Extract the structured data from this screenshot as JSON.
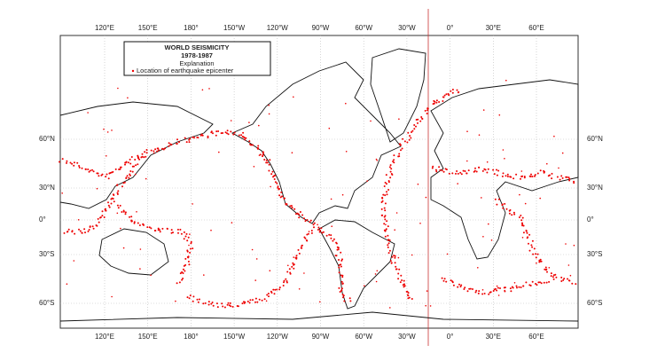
{
  "map": {
    "title": "WORLD SEISMICITY",
    "period": "1978-1987",
    "legend_heading": "Explanation",
    "legend_item": "Location of earthquake epicenter",
    "top_longitude_labels": [
      "120°E",
      "150°E",
      "180°",
      "150°W",
      "120°W",
      "90°W",
      "60°W",
      "30°W",
      "0°",
      "30°E",
      "60°E"
    ],
    "bottom_longitude_labels": [
      "120°E",
      "150°E",
      "180°",
      "150°W",
      "120°W",
      "90°W",
      "60°W",
      "30°W",
      "0°",
      "30°E",
      "60°E"
    ],
    "left_latitude_labels": [
      "60°N",
      "30°N",
      "0°",
      "30°S",
      "60°S"
    ],
    "right_latitude_labels": [
      "60°N",
      "30°N",
      "0°",
      "30°S",
      "60°S"
    ]
  }
}
